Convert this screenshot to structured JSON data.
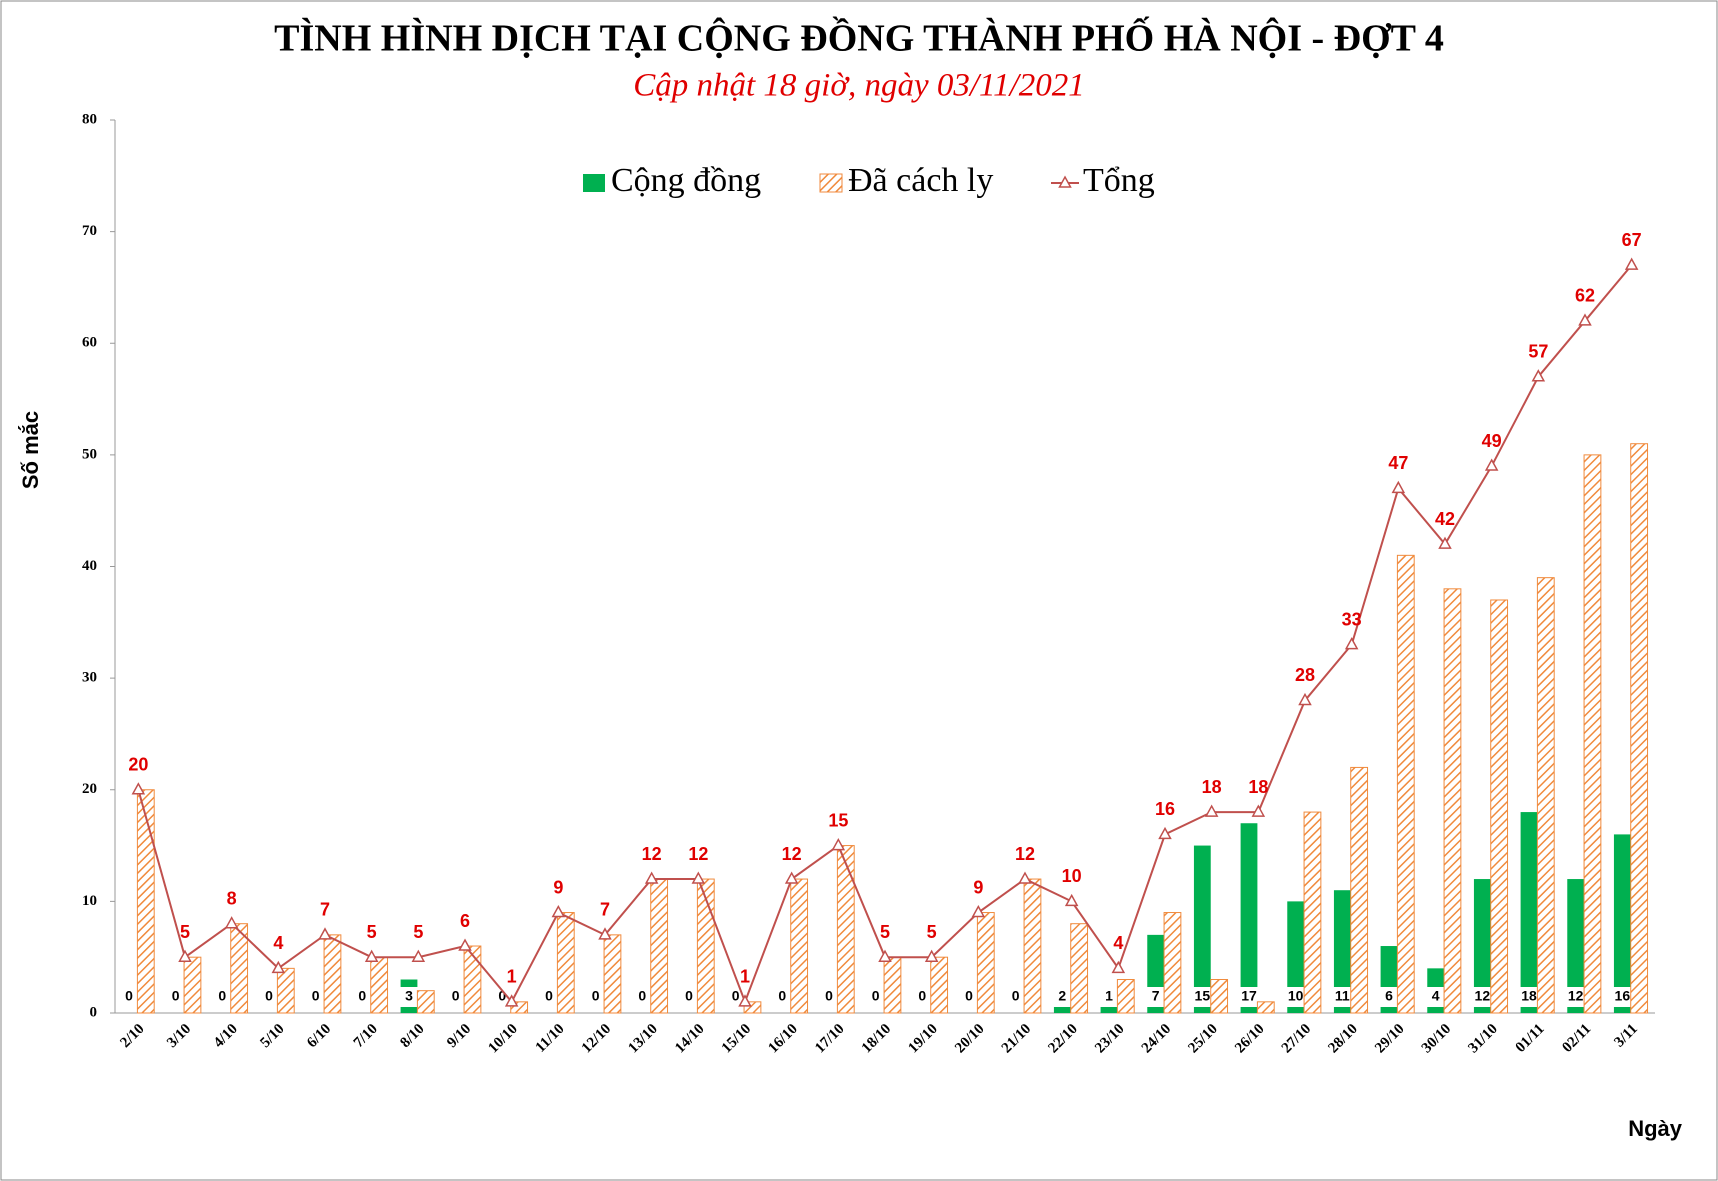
{
  "chart_data": {
    "type": "bar",
    "title": "TÌNH HÌNH DỊCH TẠI CỘNG ĐỒNG THÀNH PHỐ HÀ NỘI - ĐỢT 4",
    "subtitle": "Cập nhật 18 giờ, ngày 03/11/2021",
    "y_label": "Số mắc",
    "x_label": "Ngày",
    "categories": [
      "2/10",
      "3/10",
      "4/10",
      "5/10",
      "6/10",
      "7/10",
      "8/10",
      "9/10",
      "10/10",
      "11/10",
      "12/10",
      "13/10",
      "14/10",
      "15/10",
      "16/10",
      "17/10",
      "18/10",
      "19/10",
      "20/10",
      "21/10",
      "22/10",
      "23/10",
      "24/10",
      "25/10",
      "26/10",
      "27/10",
      "28/10",
      "29/10",
      "30/10",
      "31/10",
      "01/11",
      "02/11",
      "3/11"
    ],
    "series": [
      {
        "name": "Cộng đồng",
        "type": "bar",
        "color": "#00b050",
        "values": [
          0,
          0,
          0,
          0,
          0,
          0,
          3,
          0,
          0,
          0,
          0,
          0,
          0,
          0,
          0,
          0,
          0,
          0,
          0,
          0,
          2,
          1,
          7,
          15,
          17,
          10,
          11,
          6,
          4,
          12,
          18,
          12,
          16
        ]
      },
      {
        "name": "Đã cách ly",
        "type": "bar",
        "color": "#f4a460",
        "hatch": true,
        "values": [
          20,
          5,
          8,
          4,
          7,
          5,
          2,
          6,
          1,
          9,
          7,
          12,
          12,
          1,
          12,
          15,
          5,
          5,
          9,
          12,
          8,
          3,
          9,
          3,
          1,
          18,
          22,
          41,
          38,
          37,
          39,
          50,
          51
        ]
      },
      {
        "name": "Tổng",
        "type": "line",
        "color": "#c0504d",
        "values": [
          20,
          5,
          8,
          4,
          7,
          5,
          5,
          6,
          1,
          9,
          7,
          12,
          12,
          1,
          12,
          15,
          5,
          5,
          9,
          12,
          10,
          4,
          16,
          18,
          18,
          28,
          33,
          47,
          42,
          49,
          57,
          62,
          67
        ]
      }
    ],
    "ylim": [
      0,
      80
    ],
    "yticks": [
      0,
      10,
      20,
      30,
      40,
      50,
      60,
      70,
      80
    ],
    "grid": false
  }
}
